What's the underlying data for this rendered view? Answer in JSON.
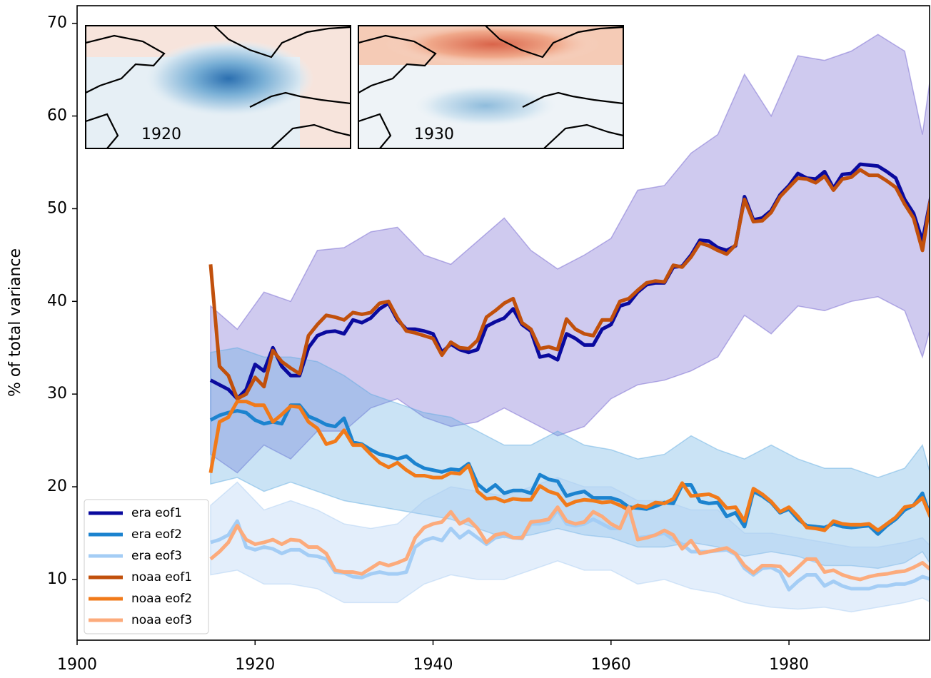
{
  "chart_data": {
    "type": "line",
    "ylabel": "% of total variance",
    "annotations": [
      "1920",
      "1930"
    ],
    "xlim": [
      1900,
      1995.8
    ],
    "ylim": [
      3.45,
      71.9
    ],
    "xticks": [
      1900,
      1920,
      1940,
      1960,
      1980
    ],
    "yticks": [
      10,
      20,
      30,
      40,
      50,
      60,
      70
    ],
    "legend": "lower left",
    "x": [
      1915,
      1916,
      1917,
      1918,
      1919,
      1920,
      1921,
      1922,
      1923,
      1924,
      1925,
      1926,
      1927,
      1928,
      1929,
      1930,
      1931,
      1932,
      1933,
      1934,
      1935,
      1936,
      1937,
      1938,
      1939,
      1940,
      1941,
      1942,
      1943,
      1944,
      1945,
      1946,
      1947,
      1948,
      1949,
      1950,
      1951,
      1952,
      1953,
      1954,
      1955,
      1956,
      1957,
      1958,
      1959,
      1960,
      1961,
      1962,
      1963,
      1964,
      1965,
      1966,
      1967,
      1968,
      1969,
      1970,
      1971,
      1972,
      1973,
      1974,
      1975,
      1976,
      1977,
      1978,
      1979,
      1980,
      1981,
      1982,
      1983,
      1984,
      1985,
      1986,
      1987,
      1988,
      1989,
      1990,
      1991,
      1992,
      1993,
      1994,
      1995,
      1996
    ],
    "bands": [
      {
        "color": "#6a5acd",
        "x": [
          1915,
          1918,
          1921,
          1924,
          1927,
          1930,
          1933,
          1936,
          1939,
          1942,
          1945,
          1948,
          1951,
          1954,
          1957,
          1960,
          1963,
          1966,
          1969,
          1972,
          1975,
          1978,
          1981,
          1984,
          1987,
          1990,
          1993,
          1995,
          1996
        ],
        "upper": [
          39.5,
          37,
          41,
          40,
          45.5,
          45.8,
          47.5,
          48,
          45,
          44,
          46.5,
          49,
          45.5,
          43.5,
          45,
          46.8,
          52,
          52.5,
          56,
          58,
          64.5,
          60,
          66.5,
          66,
          67,
          68.8,
          67,
          58,
          65
        ],
        "lower": [
          23.5,
          21.5,
          24.5,
          23,
          26,
          26,
          28.5,
          29.5,
          27.5,
          26.5,
          27,
          28.5,
          27,
          25.5,
          26.5,
          29.5,
          31,
          31.5,
          32.5,
          34,
          38.5,
          36.5,
          39.5,
          39,
          40,
          40.5,
          39,
          34,
          37.5
        ]
      },
      {
        "color": "#5aa9e0",
        "x": [
          1915,
          1918,
          1921,
          1924,
          1927,
          1930,
          1933,
          1936,
          1939,
          1942,
          1945,
          1948,
          1951,
          1954,
          1957,
          1960,
          1963,
          1966,
          1969,
          1972,
          1975,
          1978,
          1981,
          1984,
          1987,
          1990,
          1993,
          1995,
          1996
        ],
        "upper": [
          34.5,
          35,
          34,
          34,
          33.5,
          32,
          30,
          29,
          28,
          27.5,
          26,
          24.5,
          24.5,
          26,
          24.5,
          24,
          23,
          23.5,
          25.5,
          24,
          23,
          24.5,
          23,
          22,
          22,
          21,
          22,
          24.5,
          21
        ],
        "lower": [
          20.3,
          21,
          19.5,
          20.5,
          19.5,
          18.5,
          18,
          17.5,
          17,
          16.5,
          15.5,
          14.5,
          14.8,
          15.5,
          14.8,
          14.5,
          13.5,
          13.5,
          14,
          13.5,
          12.5,
          13,
          12.5,
          11.5,
          11.5,
          11.2,
          11.8,
          13,
          11.5
        ]
      },
      {
        "color": "#a9cbf2",
        "x": [
          1915,
          1918,
          1921,
          1924,
          1927,
          1930,
          1933,
          1936,
          1939,
          1942,
          1945,
          1948,
          1951,
          1954,
          1957,
          1960,
          1963,
          1966,
          1969,
          1972,
          1975,
          1978,
          1981,
          1984,
          1987,
          1990,
          1993,
          1995,
          1996
        ],
        "upper": [
          18,
          20.5,
          17.5,
          18.5,
          17.5,
          16,
          15.5,
          16,
          18.5,
          20,
          19.5,
          19,
          20,
          21,
          20,
          20,
          18.5,
          18.5,
          17.5,
          17.5,
          15,
          15,
          14.5,
          14,
          13.5,
          13.5,
          14,
          14.5,
          13.5
        ],
        "lower": [
          10.5,
          11,
          9.5,
          9.5,
          9,
          7.5,
          7.5,
          7.5,
          9.5,
          10.5,
          10,
          10,
          11,
          12,
          11,
          11,
          9.5,
          10,
          9,
          8.5,
          7.5,
          7,
          6.8,
          7,
          6.5,
          7,
          7.5,
          8,
          7.5
        ]
      }
    ],
    "series": [
      {
        "name": "era eof1",
        "color": "#0a0a9e",
        "values": [
          31.5,
          31,
          30.5,
          29.5,
          30.5,
          33.2,
          32.5,
          35,
          33,
          32,
          32,
          35,
          36.3,
          36.7,
          36.8,
          36.5,
          38,
          37.7,
          38.2,
          39.2,
          39.8,
          38,
          37,
          37,
          36.8,
          36.5,
          34.5,
          35.4,
          34.8,
          34.5,
          34.8,
          37.3,
          37.8,
          38.2,
          39.2,
          37.5,
          36.8,
          34,
          34.2,
          33.7,
          36.5,
          36,
          35.3,
          35.3,
          37,
          37.5,
          39.5,
          39.8,
          41,
          41.8,
          42,
          42,
          43.7,
          43.8,
          45,
          46.6,
          46.5,
          45.8,
          45.5,
          46,
          51.3,
          48.8,
          49,
          49.8,
          51.5,
          52.5,
          53.8,
          53.3,
          53.2,
          54,
          52.2,
          53.7,
          53.8,
          54.8,
          54.7,
          54.6,
          54,
          53.3,
          51,
          49.5,
          46.5,
          51.5
        ]
      },
      {
        "name": "era eof2",
        "color": "#1c83cf",
        "values": [
          27.2,
          27.7,
          28,
          28.2,
          28,
          27.2,
          26.8,
          27,
          26.8,
          28.8,
          28.8,
          27.6,
          27.2,
          26.7,
          26.5,
          27.4,
          24.8,
          24.6,
          24,
          23.5,
          23.3,
          23,
          23.3,
          22.5,
          22,
          21.8,
          21.6,
          21.9,
          21.8,
          22.5,
          20.3,
          19.5,
          20.2,
          19.3,
          19.6,
          19.6,
          19.3,
          21.3,
          20.8,
          20.6,
          19,
          19.3,
          19.5,
          18.8,
          18.8,
          18.8,
          18.5,
          17.8,
          17.7,
          17.6,
          17.9,
          18.3,
          18.2,
          20.2,
          20.2,
          18.4,
          18.2,
          18.3,
          16.8,
          17.2,
          15.7,
          19.5,
          19,
          18.3,
          17.2,
          17.6,
          16.5,
          15.8,
          15.7,
          15.6,
          16,
          15.7,
          15.6,
          15.7,
          15.8,
          14.9,
          15.8,
          16.5,
          17.5,
          18,
          19.3,
          16.5
        ]
      },
      {
        "name": "era eof3",
        "color": "#a4cdf5",
        "values": [
          14,
          14.3,
          14.8,
          16.3,
          13.5,
          13.2,
          13.5,
          13.3,
          12.8,
          13.2,
          13.2,
          12.6,
          12.5,
          12.2,
          10.8,
          10.7,
          10.3,
          10.2,
          10.6,
          10.8,
          10.6,
          10.6,
          10.8,
          13.5,
          14.2,
          14.5,
          14.2,
          15.5,
          14.5,
          15.2,
          14.5,
          13.8,
          14.5,
          14.7,
          14.5,
          14.4,
          16,
          16,
          16.2,
          17.5,
          16,
          15.8,
          16,
          16.5,
          16,
          15.5,
          15.5,
          17.6,
          14.5,
          14.6,
          14.8,
          15,
          14.3,
          13.8,
          13,
          13,
          13,
          13.1,
          13.2,
          12.7,
          11.2,
          10.5,
          11.2,
          11.3,
          10.8,
          8.9,
          9.8,
          10.5,
          10.5,
          9.3,
          9.8,
          9.3,
          9,
          9,
          9,
          9.3,
          9.3,
          9.5,
          9.5,
          9.8,
          10.3,
          10
        ]
      },
      {
        "name": "noaa eof1",
        "color": "#c1500c",
        "values": [
          44,
          33,
          32,
          29.5,
          30,
          31.8,
          30.8,
          34.7,
          33.5,
          32.8,
          32.2,
          36.3,
          37.5,
          38.5,
          38.3,
          38,
          38.8,
          38.6,
          38.8,
          39.8,
          40,
          38.2,
          36.8,
          36.6,
          36.3,
          36,
          34.2,
          35.6,
          35,
          34.9,
          35.8,
          38.3,
          39,
          39.8,
          40.3,
          37.7,
          37,
          34.9,
          35.1,
          34.8,
          38.1,
          37,
          36.5,
          36.3,
          38,
          38,
          40,
          40.3,
          41.2,
          42,
          42.2,
          42.1,
          43.9,
          43.7,
          44.8,
          46.3,
          46,
          45.5,
          45.1,
          46.1,
          51,
          48.6,
          48.7,
          49.6,
          51.3,
          52.3,
          53.3,
          53.2,
          52.8,
          53.5,
          52,
          53.2,
          53.4,
          54.2,
          53.6,
          53.6,
          53,
          52.3,
          50.5,
          49,
          45.5,
          51.5
        ]
      },
      {
        "name": "noaa eof2",
        "color": "#f17a1a",
        "values": [
          21.5,
          27,
          27.5,
          29.2,
          29.2,
          28.8,
          28.8,
          27,
          27.8,
          28.7,
          28.6,
          27,
          26.3,
          24.6,
          24.9,
          26.1,
          24.5,
          24.5,
          23.5,
          22.6,
          22.1,
          22.6,
          21.8,
          21.2,
          21.2,
          21,
          21,
          21.5,
          21.4,
          22.3,
          19.5,
          18.7,
          18.8,
          18.4,
          18.7,
          18.6,
          18.6,
          20.1,
          19.5,
          19.2,
          18,
          18.4,
          18.6,
          18.5,
          18.3,
          18.4,
          18,
          17.5,
          18,
          17.8,
          18.3,
          18.2,
          18.7,
          20.4,
          19,
          19.1,
          19.2,
          18.8,
          17.7,
          17.8,
          16.3,
          19.8,
          19.2,
          18.4,
          17.3,
          17.8,
          16.8,
          15.6,
          15.5,
          15.3,
          16.3,
          16,
          15.9,
          15.9,
          16,
          15.3,
          16,
          16.7,
          17.8,
          18,
          18.8,
          16.5
        ]
      },
      {
        "name": "noaa eof3",
        "color": "#fcab7c",
        "values": [
          12.2,
          13,
          14,
          15.8,
          14.3,
          13.8,
          14,
          14.3,
          13.8,
          14.3,
          14.2,
          13.5,
          13.5,
          12.8,
          11,
          10.8,
          10.8,
          10.6,
          11.2,
          11.8,
          11.5,
          11.8,
          12.2,
          14.5,
          15.6,
          16,
          16.2,
          17.3,
          16,
          16.5,
          15.5,
          14,
          14.8,
          15,
          14.5,
          14.5,
          16.2,
          16.3,
          16.5,
          17.8,
          16.3,
          16,
          16.2,
          17.3,
          16.8,
          16,
          15.5,
          17.8,
          14.3,
          14.5,
          14.8,
          15.3,
          14.8,
          13.3,
          14.2,
          12.8,
          13,
          13.2,
          13.4,
          12.8,
          11.5,
          10.7,
          11.5,
          11.5,
          11.4,
          10.4,
          11.3,
          12.2,
          12.2,
          10.8,
          11,
          10.5,
          10.2,
          10,
          10.3,
          10.5,
          10.6,
          10.8,
          10.9,
          11.3,
          11.8,
          11
        ]
      }
    ]
  }
}
